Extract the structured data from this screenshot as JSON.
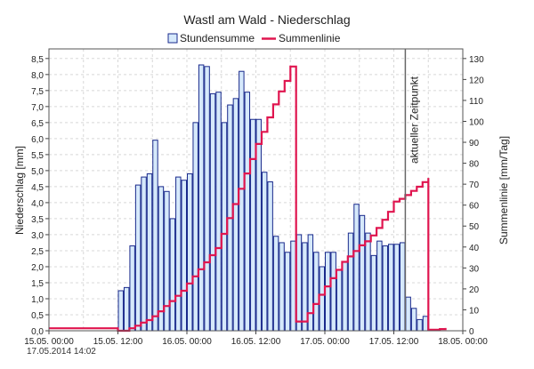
{
  "chart_data": {
    "type": "bar",
    "title": "Wastl am Wald - Niederschlag",
    "legend": {
      "placement": "top-center",
      "items": [
        {
          "label": "Stundensumme",
          "swatch": "bar"
        },
        {
          "label": "Summenlinie",
          "swatch": "line"
        }
      ]
    },
    "ylabel_left": "Niederschlag [mm]",
    "ylabel_right": "Summenlinie [mm/Tag]",
    "x_ticks": [
      "15.05. 00:00",
      "15.05. 12:00",
      "16.05. 00:00",
      "16.05. 12:00",
      "17.05. 00:00",
      "17.05. 12:00",
      "18.05. 00:00"
    ],
    "x_range_hours": [
      0,
      72
    ],
    "y_left_ticks": [
      "0,0",
      "0,5",
      "1,0",
      "1,5",
      "2,0",
      "2,5",
      "3,0",
      "3,5",
      "4,0",
      "4,5",
      "5,0",
      "5,5",
      "6,0",
      "6,5",
      "7,0",
      "7,5",
      "8,0",
      "8,5"
    ],
    "y_left_range": [
      0,
      8.8
    ],
    "y_right_ticks": [
      "0",
      "10",
      "20",
      "30",
      "40",
      "50",
      "60",
      "70",
      "80",
      "90",
      "100",
      "110",
      "120",
      "130"
    ],
    "y_right_range": [
      0,
      134.6
    ],
    "grid": true,
    "now_marker": {
      "hour": 62,
      "label": "aktueller Zeitpunkt"
    },
    "bar_start_hour": 12,
    "hourly_sums": [
      1.25,
      1.35,
      2.65,
      4.55,
      4.8,
      4.9,
      5.95,
      4.5,
      4.35,
      3.5,
      4.8,
      4.7,
      4.9,
      6.5,
      8.3,
      8.25,
      7.4,
      7.45,
      6.5,
      7.05,
      7.25,
      8.1,
      7.45,
      6.6,
      6.6,
      4.95,
      4.65,
      2.95,
      2.75,
      2.45,
      2.8,
      3.0,
      2.75,
      3.0,
      2.45,
      2.0,
      2.45,
      2.45,
      1.9,
      2.15,
      3.05,
      3.95,
      3.6,
      3.05,
      2.35,
      2.8,
      2.65,
      2.7,
      2.7,
      2.75,
      1.05,
      0.7,
      0.35,
      0.45
    ],
    "cumulative_line": {
      "name": "Summenlinie",
      "points": [
        [
          0,
          1.2
        ],
        [
          6,
          1.2
        ],
        [
          12,
          1.2
        ],
        [
          12,
          0.0
        ],
        [
          13,
          0.0
        ],
        [
          14,
          1.2
        ],
        [
          15,
          2.4
        ],
        [
          16,
          3.9
        ],
        [
          17,
          5.1
        ],
        [
          18,
          6.9
        ],
        [
          19,
          9.3
        ],
        [
          20,
          11.8
        ],
        [
          21,
          14.2
        ],
        [
          22,
          16.7
        ],
        [
          23,
          19.1
        ],
        [
          24,
          22.6
        ],
        [
          25,
          26.0
        ],
        [
          26,
          29.4
        ],
        [
          27,
          32.7
        ],
        [
          28,
          36.1
        ],
        [
          29,
          39.5
        ],
        [
          30,
          46.3
        ],
        [
          31,
          53.8
        ],
        [
          32,
          60.5
        ],
        [
          33,
          67.8
        ],
        [
          34,
          75.1
        ],
        [
          35,
          82.0
        ],
        [
          36,
          89.2
        ],
        [
          37,
          95.0
        ],
        [
          38,
          101.9
        ],
        [
          39,
          108.1
        ],
        [
          40,
          114.3
        ],
        [
          41,
          119.3
        ],
        [
          42,
          126.2
        ],
        [
          43,
          126.2
        ],
        [
          43,
          106.0
        ],
        [
          43,
          4.4
        ],
        [
          44,
          4.4
        ],
        [
          45,
          8.4
        ],
        [
          46,
          12.8
        ],
        [
          47,
          17.2
        ],
        [
          48,
          21.2
        ],
        [
          49,
          25.1
        ],
        [
          50,
          29.1
        ],
        [
          51,
          32.9
        ],
        [
          52,
          35.5
        ],
        [
          53,
          38.1
        ],
        [
          54,
          40.8
        ],
        [
          55,
          42.7
        ],
        [
          56,
          45.5
        ],
        [
          57,
          49.1
        ],
        [
          58,
          53.0
        ],
        [
          59,
          56.8
        ],
        [
          60,
          61.7
        ],
        [
          61,
          63.0
        ],
        [
          62,
          64.8
        ],
        [
          63,
          66.8
        ],
        [
          64,
          68.8
        ],
        [
          65,
          71.0
        ],
        [
          66,
          73.0
        ],
        [
          66,
          0.5
        ],
        [
          67,
          0.5
        ],
        [
          68,
          0.8
        ],
        [
          69,
          1.3
        ]
      ]
    },
    "timestamp": "17.05.2014  14:02",
    "colors": {
      "bar_fill": "#d6e9fb",
      "bar_stroke": "#1a2a8c",
      "line": "#e0154f",
      "now_line": "#666666",
      "grid": "#d8d8d8"
    }
  }
}
